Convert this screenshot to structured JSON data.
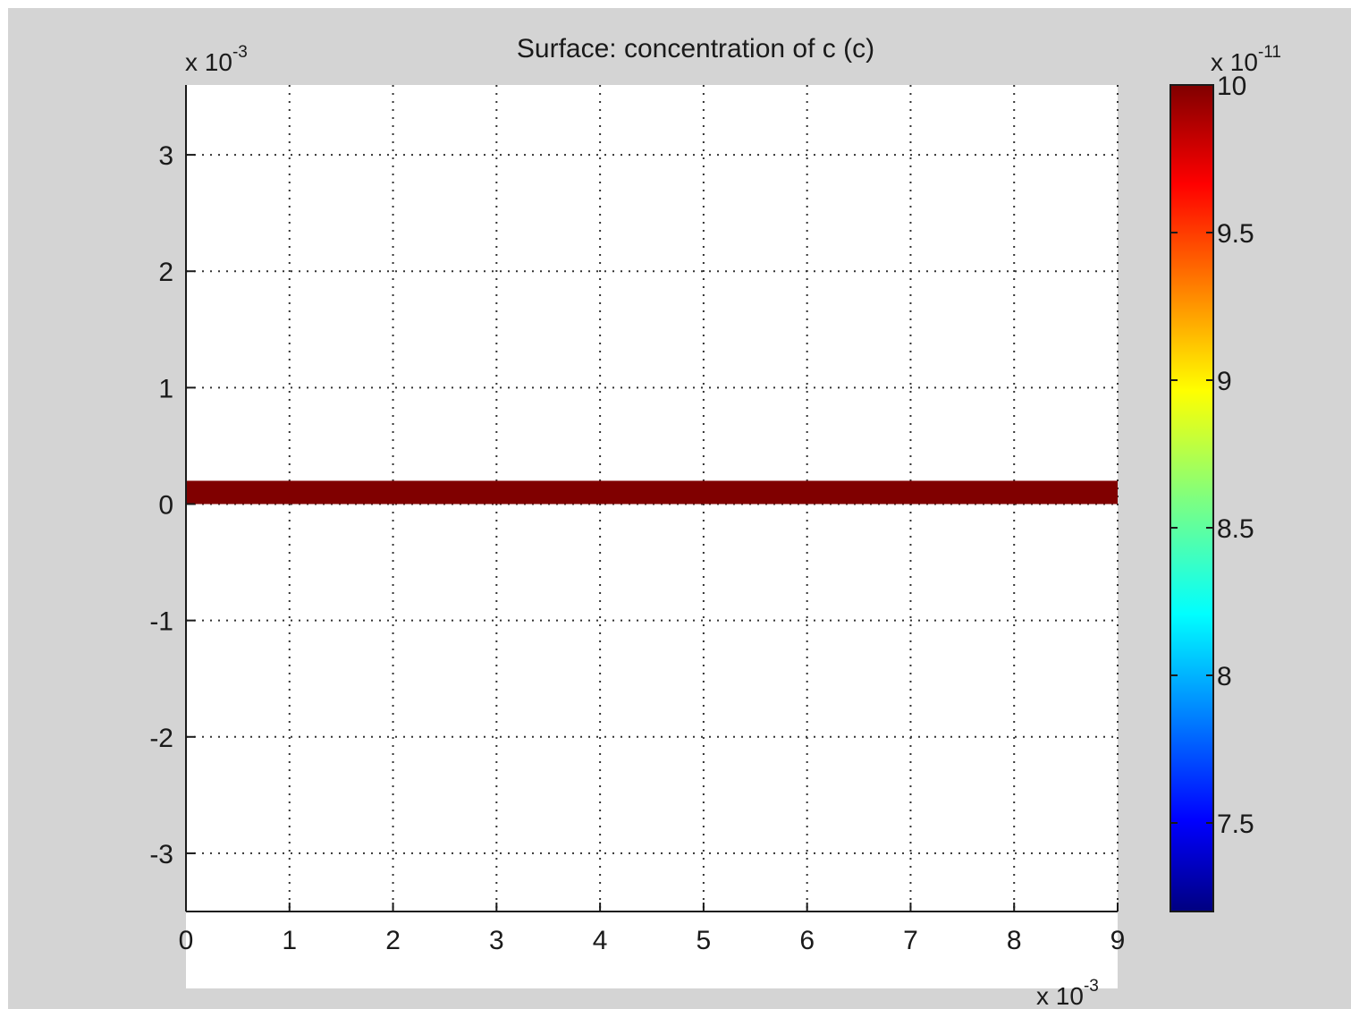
{
  "chart_data": {
    "type": "heatmap",
    "title": "Surface: concentration of c (c)",
    "xlabel": "",
    "ylabel": "",
    "x_scale_label": "x 10",
    "x_scale_exp": "-3",
    "y_scale_label": "x 10",
    "y_scale_exp": "-3",
    "xlim": [
      0,
      9
    ],
    "ylim": [
      -3.5,
      3.6
    ],
    "x_ticks": [
      "0",
      "1",
      "2",
      "3",
      "4",
      "5",
      "6",
      "7",
      "8",
      "9"
    ],
    "y_ticks": [
      "3",
      "2",
      "1",
      "0",
      "-1",
      "-2",
      "-3"
    ],
    "grid": true,
    "surface": {
      "x_range": [
        0,
        9
      ],
      "y_range": [
        0,
        0.2
      ],
      "value": 10,
      "color": "#800000"
    },
    "colorbar": {
      "scale_label": "x 10",
      "scale_exp": "-11",
      "min": 7.2,
      "max": 10,
      "ticks": [
        "10",
        "9.5",
        "9",
        "8.5",
        "8",
        "7.5"
      ],
      "colormap": "jet"
    }
  }
}
